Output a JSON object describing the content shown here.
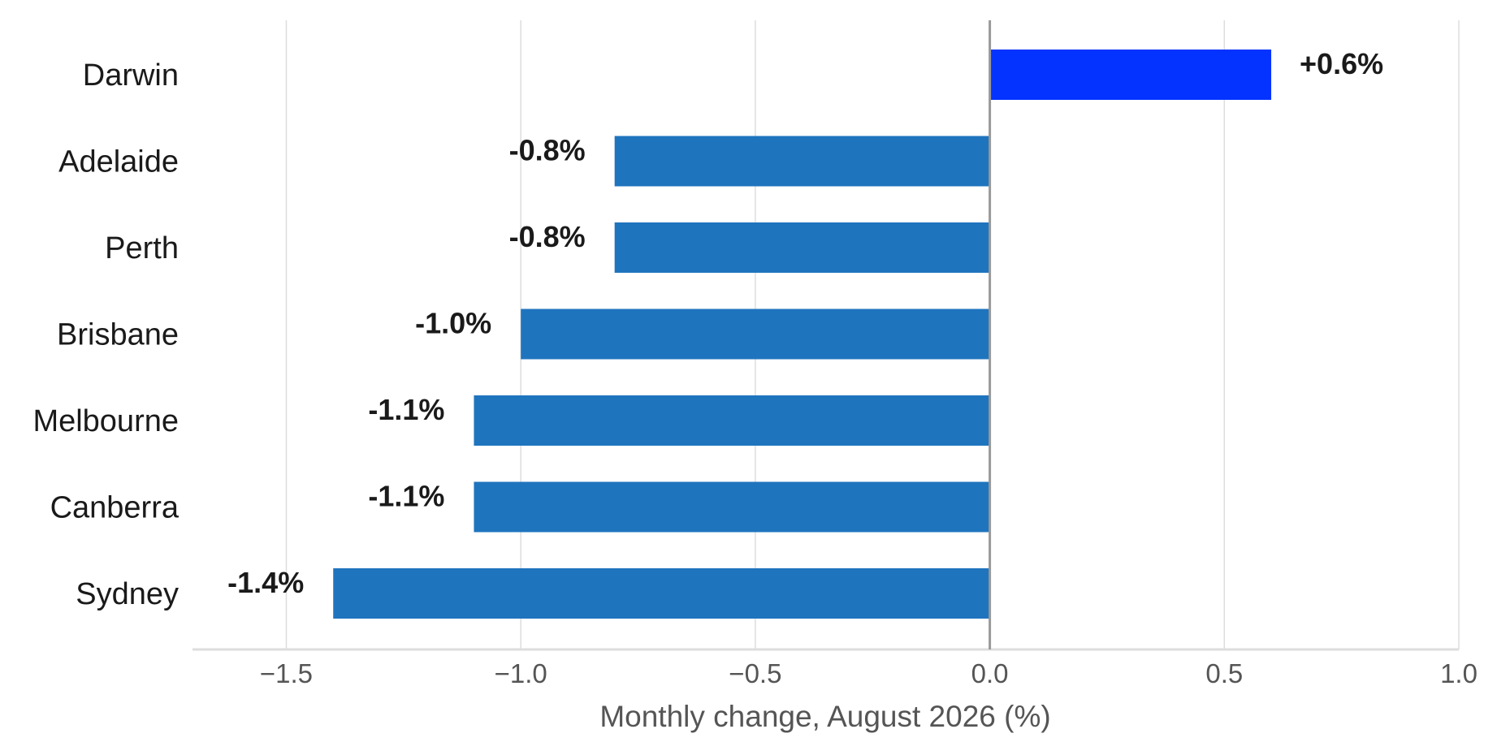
{
  "chart_data": {
    "type": "bar",
    "orientation": "horizontal",
    "title": "",
    "xlabel": "Monthly change, August 2026 (%)",
    "ylabel": "",
    "xlim": [
      -1.7,
      1.0
    ],
    "xticks": [
      -1.5,
      -1.0,
      -0.5,
      0.0,
      0.5,
      1.0
    ],
    "xtick_labels": [
      "−1.5",
      "−1.0",
      "−0.5",
      "0.0",
      "0.5",
      "1.0"
    ],
    "grid": "vertical",
    "legend": "none",
    "categories": [
      "Darwin",
      "Adelaide",
      "Perth",
      "Brisbane",
      "Melbourne",
      "Canberra",
      "Sydney"
    ],
    "values": [
      0.6,
      -0.8,
      -0.8,
      -1.0,
      -1.1,
      -1.1,
      -1.4
    ],
    "value_labels": [
      "+0.6%",
      "-0.8%",
      "-0.8%",
      "-1.0%",
      "-1.1%",
      "-1.1%",
      "-1.4%"
    ],
    "colors": {
      "positive": "#0433ff",
      "negative": "#1f74be",
      "zero_line": "#999999",
      "grid": "#dddddd",
      "axis": "#dddddd"
    }
  }
}
